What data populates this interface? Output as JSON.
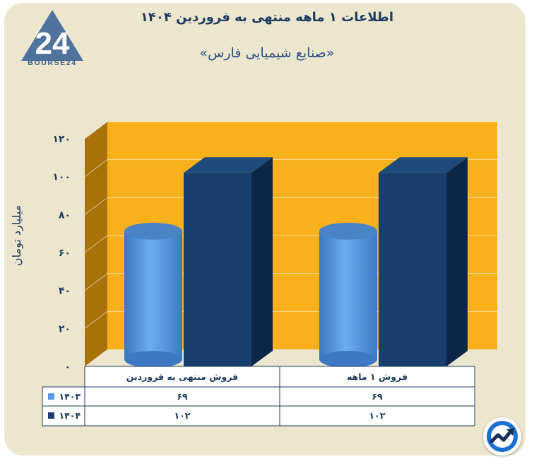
{
  "brand": {
    "logo_text": "BOURSE24",
    "logo_digits": "24"
  },
  "header": {
    "title": "اطلاعات ۱ ماهه منتهی به فروردین ۱۴۰۴",
    "subtitle": "«صنایع شیمیایی فارس»"
  },
  "icons": {
    "fab": "trend-arrow-icon"
  },
  "colors": {
    "background": "#ede6cf",
    "plot_back": "#f8b01b",
    "plot_side": "#a97208",
    "series_1403": "#5a9ae0",
    "series_1404": "#183f6d"
  },
  "chart_data": {
    "type": "bar",
    "title": "اطلاعات ۱ ماهه منتهی به فروردین ۱۴۰۴",
    "subtitle": "«صنایع شیمیایی فارس»",
    "ylabel": "میلیارد تومان",
    "xlabel": "",
    "ylim": [
      0,
      120
    ],
    "yticks": [
      "۰",
      "۲۰",
      "۴۰",
      "۶۰",
      "۸۰",
      "۱۰۰",
      "۱۲۰"
    ],
    "grid": true,
    "categories": [
      "فروش منتهی به  فروردین",
      "فروش ۱  ماهه"
    ],
    "series": [
      {
        "name": "۱۴۰۳",
        "values": [
          69,
          69
        ],
        "labels": [
          "۶۹",
          "۶۹"
        ],
        "shape": "cylinder"
      },
      {
        "name": "۱۴۰۴",
        "values": [
          102,
          102
        ],
        "labels": [
          "۱۰۲",
          "۱۰۲"
        ],
        "shape": "box"
      }
    ],
    "legend": "data-table-below"
  }
}
